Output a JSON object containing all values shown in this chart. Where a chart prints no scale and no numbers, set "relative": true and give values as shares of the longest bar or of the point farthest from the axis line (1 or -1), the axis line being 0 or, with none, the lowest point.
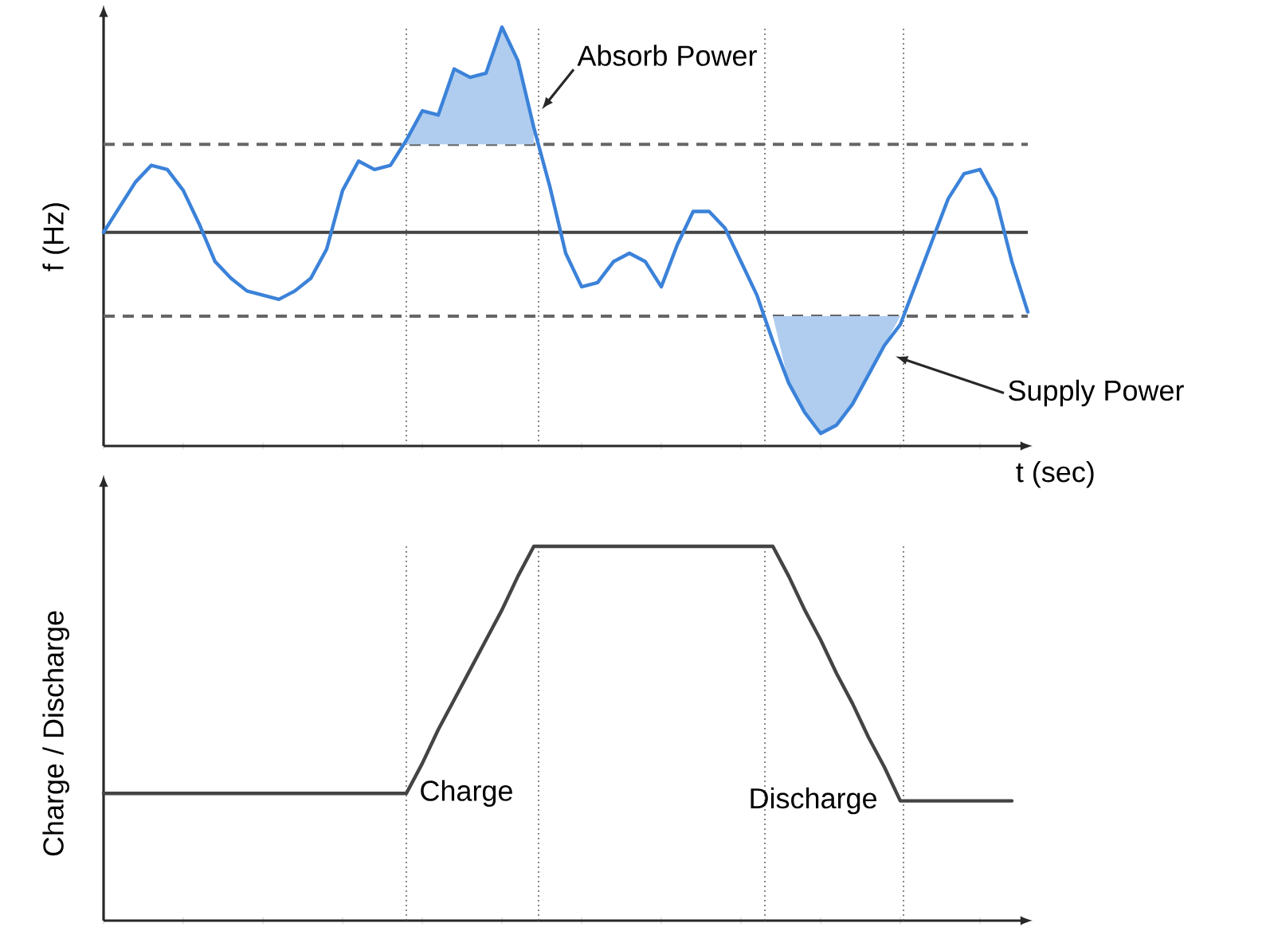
{
  "chart_data": [
    {
      "type": "line",
      "ylabel": "f (Hz)",
      "xlabel": "t (sec)",
      "relative": true,
      "line_style": "solid",
      "categories": [
        null,
        null,
        null,
        null,
        null,
        null,
        null,
        null,
        null,
        null,
        null,
        null,
        null,
        null,
        null,
        null,
        null,
        null,
        null,
        null,
        null,
        null,
        null,
        null,
        null,
        null,
        null,
        null,
        null,
        null,
        null,
        null,
        null,
        null,
        null,
        null,
        null,
        null,
        null,
        null,
        null,
        null,
        null,
        null,
        null,
        null,
        null,
        null,
        null,
        null,
        null,
        null,
        null,
        null,
        null,
        null,
        null,
        null,
        null
      ],
      "series": [
        {
          "color": "#3b82d9",
          "values": [
            0.51,
            0.57,
            0.63,
            0.67,
            0.66,
            0.61,
            0.53,
            0.44,
            0.4,
            0.37,
            0.36,
            0.35,
            0.37,
            0.4,
            0.47,
            0.61,
            0.68,
            0.66,
            0.67,
            0.73,
            0.8,
            0.79,
            0.9,
            0.88,
            0.89,
            1.0,
            0.92,
            0.76,
            0.62,
            0.46,
            0.38,
            0.39,
            0.44,
            0.46,
            0.44,
            0.38,
            0.48,
            0.56,
            0.56,
            0.52,
            0.44,
            0.36,
            0.25,
            0.15,
            0.08,
            0.03,
            0.05,
            0.1,
            0.17,
            0.24,
            0.29,
            0.39,
            0.49,
            0.59,
            0.65,
            0.66,
            0.59,
            0.44,
            0.32
          ],
          "lower": [
            null,
            null,
            null,
            null,
            null,
            null,
            null,
            null,
            null,
            null,
            null,
            null,
            null,
            null,
            null,
            null,
            null,
            null,
            null,
            0.72,
            0.72,
            0.72,
            0.72,
            0.72,
            0.72,
            0.72,
            0.72,
            0.72,
            null,
            null,
            null,
            null,
            null,
            null,
            null,
            null,
            null,
            null,
            null,
            null,
            null,
            null,
            0.31,
            0.15,
            0.08,
            0.03,
            0.05,
            0.1,
            0.17,
            0.24,
            0.31,
            null,
            null,
            null,
            null,
            null,
            null,
            null,
            null
          ],
          "upper": [
            null,
            null,
            null,
            null,
            null,
            null,
            null,
            null,
            null,
            null,
            null,
            null,
            null,
            null,
            null,
            null,
            null,
            null,
            null,
            0.73,
            0.8,
            0.79,
            0.9,
            0.88,
            0.89,
            1.0,
            0.92,
            0.76,
            null,
            null,
            null,
            null,
            null,
            null,
            null,
            null,
            null,
            null,
            null,
            null,
            null,
            null,
            0.31,
            0.31,
            0.31,
            0.31,
            0.31,
            0.31,
            0.31,
            0.31,
            0.31,
            null,
            null,
            null,
            null,
            null,
            null,
            null,
            null
          ]
        }
      ],
      "ref_lines": [
        {
          "axis": "y",
          "value": 0.72,
          "color": "#666666",
          "line_style": "dashed"
        },
        {
          "axis": "y",
          "value": 0.51,
          "color": "#444444",
          "line_style": "solid"
        },
        {
          "axis": "y",
          "value": 0.31,
          "color": "#666666",
          "line_style": "dashed"
        }
      ],
      "annotations": [
        "Absorb Power",
        "Supply Power"
      ]
    },
    {
      "type": "line",
      "ylabel": "Charge / Discharge",
      "relative": true,
      "line_style": "solid",
      "categories": [
        null,
        null,
        null,
        null,
        null,
        null,
        null,
        null,
        null,
        null,
        null,
        null,
        null,
        null,
        null,
        null,
        null,
        null,
        null,
        null,
        null,
        null,
        null,
        null,
        null,
        null,
        null,
        null,
        null,
        null,
        null,
        null,
        null,
        null,
        null,
        null,
        null,
        null,
        null,
        null,
        null,
        null,
        null,
        null,
        null,
        null,
        null,
        null,
        null,
        null,
        null,
        null,
        null,
        null,
        null,
        null,
        null,
        null,
        null
      ],
      "series": [
        {
          "color": "#444444",
          "values": [
            0.34,
            0.34,
            0.34,
            0.34,
            0.34,
            0.34,
            0.34,
            0.34,
            0.34,
            0.34,
            0.34,
            0.34,
            0.34,
            0.34,
            0.34,
            0.34,
            0.34,
            0.34,
            0.34,
            0.34,
            0.42,
            0.51,
            0.59,
            0.67,
            0.75,
            0.83,
            0.92,
            1.0,
            1.0,
            1.0,
            1.0,
            1.0,
            1.0,
            1.0,
            1.0,
            1.0,
            1.0,
            1.0,
            1.0,
            1.0,
            1.0,
            1.0,
            1.0,
            0.92,
            0.83,
            0.75,
            0.66,
            0.58,
            0.49,
            0.41,
            0.32,
            0.32,
            0.32,
            0.32,
            0.32,
            0.32,
            0.32,
            0.32,
            null
          ]
        }
      ],
      "annotations": [
        "Charge",
        "Discharge"
      ]
    }
  ]
}
